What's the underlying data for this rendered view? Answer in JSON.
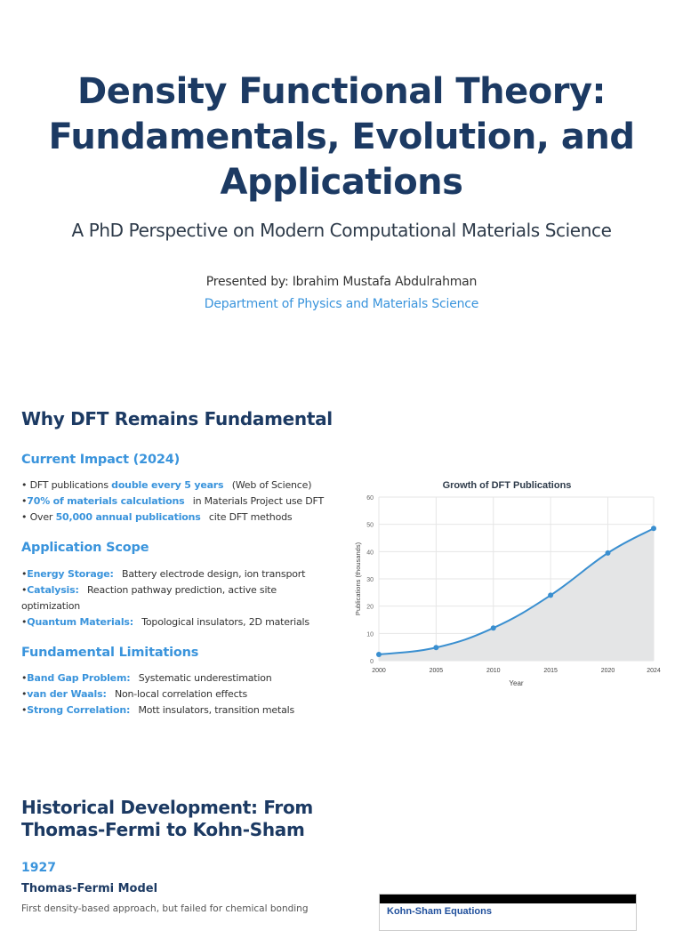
{
  "header": {
    "title": "Density Functional Theory: Fundamentals, Evolution, and Applications",
    "subtitle": "A PhD Perspective on Modern Computational Materials Science",
    "presenter": "Presented by: Ibrahim Mustafa Abdulrahman",
    "department": "Department of Physics and Materials Science"
  },
  "why_section": {
    "heading": "Why DFT Remains Fundamental",
    "impact": {
      "heading": "Current Impact (2024)",
      "items": [
        {
          "bullet": "• ",
          "pre": "DFT publications ",
          "highlight": "double every 5 years",
          "post": "(Web of Science)"
        },
        {
          "bullet": "•",
          "pre": "",
          "highlight": "70% of materials calculations",
          "post": "in Materials Project use DFT"
        },
        {
          "bullet": "• ",
          "pre": "Over ",
          "highlight": "50,000 annual publications",
          "post": "cite DFT methods"
        }
      ]
    },
    "scope": {
      "heading": "Application Scope",
      "items": [
        {
          "bullet": " •",
          "highlight": "Energy Storage:",
          "post": "Battery electrode design, ion transport"
        },
        {
          "bullet": " •",
          "highlight": "Catalysis:",
          "post": "Reaction pathway prediction, active site optimization"
        },
        {
          "bullet": " •",
          "highlight": "Quantum Materials:",
          "post": "Topological insulators, 2D materials"
        }
      ]
    },
    "limitations": {
      "heading": "Fundamental Limitations",
      "items": [
        {
          "bullet": "•",
          "highlight": "Band Gap Problem:",
          "post": "Systematic underestimation"
        },
        {
          "bullet": "•",
          "highlight": "van der Waals:",
          "post": "Non-local correlation effects"
        },
        {
          "bullet": "•",
          "highlight": "Strong Correlation:",
          "post": "Mott insulators, transition metals"
        }
      ]
    }
  },
  "chart_data": {
    "type": "line",
    "title": "Growth of DFT Publications",
    "xlabel": "Year",
    "ylabel": "Publications (thousands)",
    "categories": [
      "2000",
      "2005",
      "2010",
      "2015",
      "2020",
      "2024"
    ],
    "x": [
      2000,
      2005,
      2010,
      2015,
      2020,
      2024
    ],
    "values": [
      2.3,
      4.8,
      12,
      24,
      39.5,
      48.5
    ],
    "series": [
      {
        "name": "Publications (thousands)",
        "values": [
          2.3,
          4.8,
          12,
          24,
          39.5,
          48.5
        ]
      }
    ],
    "ylim": [
      0,
      60
    ],
    "yticks": [
      "0",
      "10",
      "20",
      "30",
      "40",
      "50",
      "60"
    ],
    "grid": true,
    "fill": true,
    "legend": "none",
    "line_color": "#3a8fd0",
    "fill_color": "#e4e5e6"
  },
  "history": {
    "heading_line1": "Historical Development: From",
    "heading_line2": "Thomas-Fermi to Kohn-Sham",
    "year": "1927",
    "event_title": "Thomas-Fermi Model",
    "event_desc": "First density-based approach, but failed for chemical bonding",
    "ks_box_title": "Kohn-Sham Equations"
  }
}
